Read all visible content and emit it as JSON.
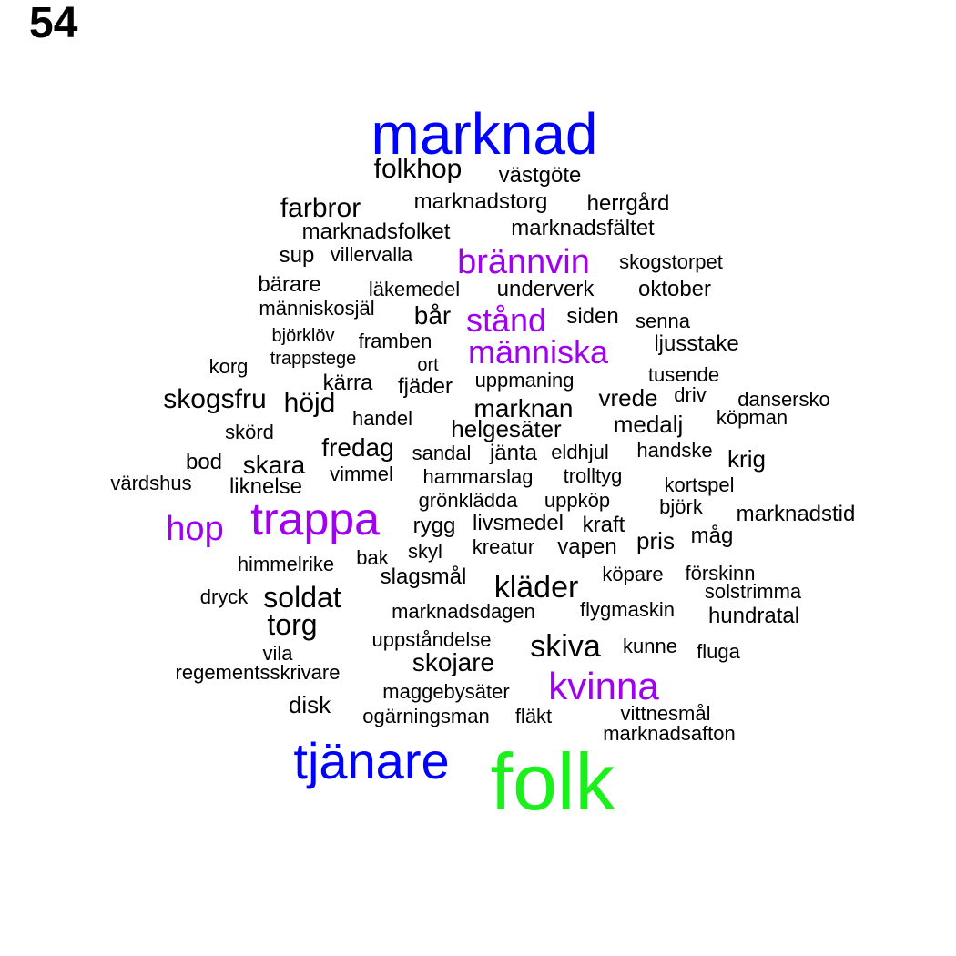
{
  "panel_number": "54",
  "colors": {
    "blue": "#0000ff",
    "green": "#1cf01c",
    "purple": "#a000f0",
    "black": "#000000"
  },
  "words": [
    {
      "text": "marknad",
      "color": "blue"
    },
    {
      "text": "folkhop",
      "color": "black"
    },
    {
      "text": "västgöte",
      "color": "black"
    },
    {
      "text": "farbror",
      "color": "black"
    },
    {
      "text": "marknadstorg",
      "color": "black"
    },
    {
      "text": "herrgård",
      "color": "black"
    },
    {
      "text": "marknadsfolket",
      "color": "black"
    },
    {
      "text": "marknadsfältet",
      "color": "black"
    },
    {
      "text": "sup",
      "color": "black"
    },
    {
      "text": "villervalla",
      "color": "black"
    },
    {
      "text": "brännvin",
      "color": "purple"
    },
    {
      "text": "skogstorpet",
      "color": "black"
    },
    {
      "text": "bärare",
      "color": "black"
    },
    {
      "text": "läkemedel",
      "color": "black"
    },
    {
      "text": "underverk",
      "color": "black"
    },
    {
      "text": "oktober",
      "color": "black"
    },
    {
      "text": "människosjäl",
      "color": "black"
    },
    {
      "text": "bår",
      "color": "black"
    },
    {
      "text": "stånd",
      "color": "purple"
    },
    {
      "text": "siden",
      "color": "black"
    },
    {
      "text": "senna",
      "color": "black"
    },
    {
      "text": "björklöv",
      "color": "black"
    },
    {
      "text": "framben",
      "color": "black"
    },
    {
      "text": "människa",
      "color": "purple"
    },
    {
      "text": "ljusstake",
      "color": "black"
    },
    {
      "text": "korg",
      "color": "black"
    },
    {
      "text": "trappstege",
      "color": "black"
    },
    {
      "text": "ort",
      "color": "black"
    },
    {
      "text": "tusende",
      "color": "black"
    },
    {
      "text": "kärra",
      "color": "black"
    },
    {
      "text": "fjäder",
      "color": "black"
    },
    {
      "text": "uppmaning",
      "color": "black"
    },
    {
      "text": "skogsfru",
      "color": "black"
    },
    {
      "text": "höjd",
      "color": "black"
    },
    {
      "text": "marknan",
      "color": "black"
    },
    {
      "text": "vrede",
      "color": "black"
    },
    {
      "text": "driv",
      "color": "black"
    },
    {
      "text": "dansersko",
      "color": "black"
    },
    {
      "text": "handel",
      "color": "black"
    },
    {
      "text": "helgesäter",
      "color": "black"
    },
    {
      "text": "medalj",
      "color": "black"
    },
    {
      "text": "köpman",
      "color": "black"
    },
    {
      "text": "skörd",
      "color": "black"
    },
    {
      "text": "fredag",
      "color": "black"
    },
    {
      "text": "sandal",
      "color": "black"
    },
    {
      "text": "jänta",
      "color": "black"
    },
    {
      "text": "eldhjul",
      "color": "black"
    },
    {
      "text": "handske",
      "color": "black"
    },
    {
      "text": "krig",
      "color": "black"
    },
    {
      "text": "bod",
      "color": "black"
    },
    {
      "text": "skara",
      "color": "black"
    },
    {
      "text": "vimmel",
      "color": "black"
    },
    {
      "text": "hammarslag",
      "color": "black"
    },
    {
      "text": "trolltyg",
      "color": "black"
    },
    {
      "text": "värdshus",
      "color": "black"
    },
    {
      "text": "liknelse",
      "color": "black"
    },
    {
      "text": "kortspel",
      "color": "black"
    },
    {
      "text": "grönklädda",
      "color": "black"
    },
    {
      "text": "uppköp",
      "color": "black"
    },
    {
      "text": "trappa",
      "color": "purple"
    },
    {
      "text": "björk",
      "color": "black"
    },
    {
      "text": "marknadstid",
      "color": "black"
    },
    {
      "text": "hop",
      "color": "purple"
    },
    {
      "text": "rygg",
      "color": "black"
    },
    {
      "text": "livsmedel",
      "color": "black"
    },
    {
      "text": "kraft",
      "color": "black"
    },
    {
      "text": "måg",
      "color": "black"
    },
    {
      "text": "pris",
      "color": "black"
    },
    {
      "text": "kreatur",
      "color": "black"
    },
    {
      "text": "vapen",
      "color": "black"
    },
    {
      "text": "skyl",
      "color": "black"
    },
    {
      "text": "bak",
      "color": "black"
    },
    {
      "text": "himmelrike",
      "color": "black"
    },
    {
      "text": "köpare",
      "color": "black"
    },
    {
      "text": "förskinn",
      "color": "black"
    },
    {
      "text": "slagsmål",
      "color": "black"
    },
    {
      "text": "kläder",
      "color": "black"
    },
    {
      "text": "solstrimma",
      "color": "black"
    },
    {
      "text": "dryck",
      "color": "black"
    },
    {
      "text": "soldat",
      "color": "black"
    },
    {
      "text": "marknadsdagen",
      "color": "black"
    },
    {
      "text": "flygmaskin",
      "color": "black"
    },
    {
      "text": "hundratal",
      "color": "black"
    },
    {
      "text": "torg",
      "color": "black"
    },
    {
      "text": "uppståndelse",
      "color": "black"
    },
    {
      "text": "skiva",
      "color": "black"
    },
    {
      "text": "kunne",
      "color": "black"
    },
    {
      "text": "vila",
      "color": "black"
    },
    {
      "text": "fluga",
      "color": "black"
    },
    {
      "text": "skojare",
      "color": "black"
    },
    {
      "text": "regementsskrivare",
      "color": "black"
    },
    {
      "text": "kvinna",
      "color": "purple"
    },
    {
      "text": "maggebysäter",
      "color": "black"
    },
    {
      "text": "disk",
      "color": "black"
    },
    {
      "text": "ogärningsman",
      "color": "black"
    },
    {
      "text": "fläkt",
      "color": "black"
    },
    {
      "text": "vittnesmål",
      "color": "black"
    },
    {
      "text": "marknadsafton",
      "color": "black"
    },
    {
      "text": "tjänare",
      "color": "blue"
    },
    {
      "text": "folk",
      "color": "green"
    }
  ]
}
